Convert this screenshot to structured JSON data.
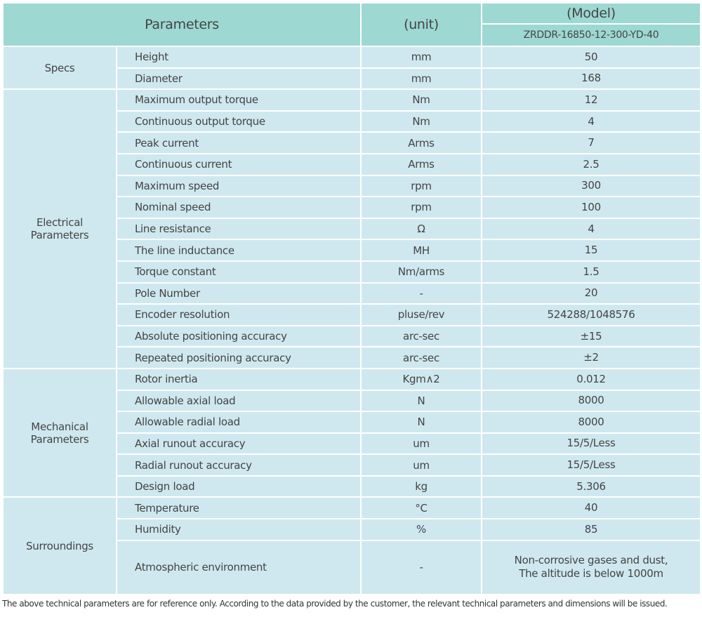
{
  "header": {
    "parameters": "Parameters",
    "unit": "(unit)",
    "model": "(Model)",
    "model_name": "ZRDDR-16850-12-300-YD-40"
  },
  "groups": [
    {
      "name": "Specs",
      "rows": [
        [
          "Height",
          "mm",
          "50"
        ],
        [
          "Diameter",
          "mm",
          "168"
        ]
      ]
    },
    {
      "name": "Electrical Parameters",
      "rows": [
        [
          "Maximum output torque",
          "Nm",
          "12"
        ],
        [
          "Continuous output torque",
          "Nm",
          "4"
        ],
        [
          "Peak current",
          "Arms",
          "7"
        ],
        [
          "Continuous current",
          "Arms",
          "2.5"
        ],
        [
          "Maximum speed",
          "rpm",
          "300"
        ],
        [
          "Nominal speed",
          "rpm",
          "100"
        ],
        [
          "Line resistance",
          "Ω",
          "4"
        ],
        [
          "The line inductance",
          "MH",
          "15"
        ],
        [
          "Torque constant",
          "Nm/arms",
          "1.5"
        ],
        [
          "Pole Number",
          "-",
          "20"
        ],
        [
          "Encoder resolution",
          "pluse/rev",
          "524288/1048576"
        ],
        [
          "Absolute positioning accuracy",
          "arc-sec",
          "±15"
        ],
        [
          "Repeated positioning accuracy",
          "arc-sec",
          "±2"
        ]
      ]
    },
    {
      "name": "Mechanical Parameters",
      "rows": [
        [
          "Rotor inertia",
          "Kgm∧2",
          "0.012"
        ],
        [
          "Allowable axial load",
          "N",
          "8000"
        ],
        [
          "Allowable radial load",
          "N",
          "8000"
        ],
        [
          "Axial runout accuracy",
          "um",
          "15/5/Less"
        ],
        [
          "Radial runout accuracy",
          "um",
          "15/5/Less"
        ],
        [
          "Design load",
          "kg",
          "5.306"
        ]
      ]
    },
    {
      "name": "Surroundings",
      "rows": [
        [
          "Temperature",
          "°C",
          "40"
        ],
        [
          "Humidity",
          "%",
          "85"
        ],
        [
          "Atmospheric environment",
          "-",
          "Non-corrosive gases and dust, The altitude is below 1000m"
        ]
      ]
    }
  ],
  "footnote": "The above technical parameters are for reference only. According to the data provided by the customer, the relevant technical parameters and dimensions will be issued."
}
